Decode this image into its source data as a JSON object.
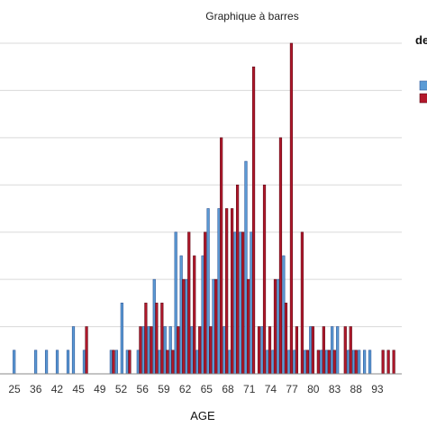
{
  "chart_data": {
    "type": "bar",
    "title": "Graphique à barres",
    "xlabel": "AGE",
    "ylabel": "",
    "ylim": [
      0,
      14
    ],
    "grid": true,
    "legend_title": "de",
    "legend_position": "top-right",
    "x_tick_labels": [
      "25",
      "36",
      "42",
      "45",
      "49",
      "52",
      "56",
      "59",
      "62",
      "65",
      "68",
      "71",
      "74",
      "77",
      "80",
      "83",
      "88",
      "93"
    ],
    "x": [
      25,
      29,
      31,
      33,
      35,
      36,
      38,
      42,
      43,
      44,
      45,
      46,
      48,
      49,
      50,
      51,
      52,
      53,
      54,
      55,
      56,
      57,
      58,
      59,
      60,
      61,
      62,
      63,
      64,
      65,
      66,
      67,
      68,
      69,
      70,
      71,
      72,
      73,
      74,
      75,
      76,
      77,
      78,
      79,
      80,
      81,
      82,
      83,
      84,
      85,
      86,
      87,
      88,
      89,
      90,
      91,
      93,
      94,
      95,
      96
    ],
    "series": [
      {
        "color": "#5b9bd5",
        "values": [
          1,
          1,
          1,
          1,
          1,
          2,
          1,
          0,
          1,
          1,
          3,
          1,
          1,
          2,
          2,
          4,
          1,
          2,
          2,
          6,
          5,
          4,
          2,
          1,
          5,
          7,
          4,
          7,
          2,
          1,
          6,
          6,
          9,
          6,
          0,
          2,
          1,
          1,
          4,
          5,
          1,
          1,
          0,
          1,
          2,
          0,
          1,
          1,
          2,
          2,
          0,
          1,
          1,
          1,
          1,
          1,
          0,
          0,
          0,
          0
        ]
      },
      {
        "color": "#b2182b",
        "values": [
          0,
          0,
          0,
          0,
          0,
          0,
          2,
          0,
          1,
          0,
          0,
          1,
          2,
          3,
          2,
          3,
          3,
          1,
          1,
          2,
          4,
          6,
          5,
          2,
          6,
          2,
          4,
          10,
          7,
          7,
          8,
          6,
          4,
          13,
          2,
          8,
          2,
          4,
          10,
          3,
          14,
          2,
          6,
          1,
          2,
          1,
          2,
          1,
          1,
          0,
          2,
          2,
          1,
          0,
          0,
          0,
          1,
          1,
          1,
          0
        ]
      }
    ]
  }
}
